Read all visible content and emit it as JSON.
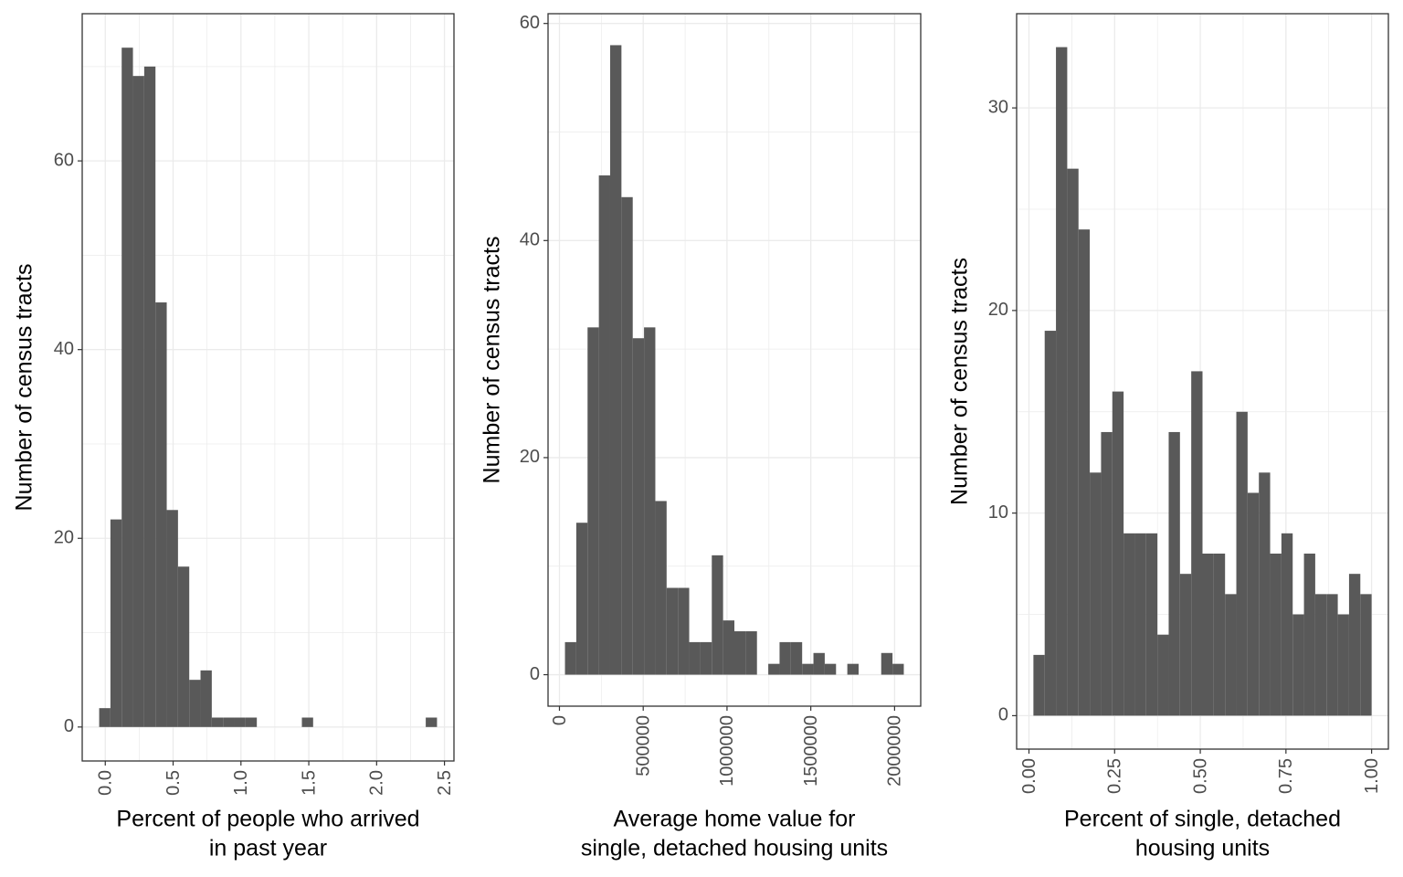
{
  "chart_data": [
    {
      "type": "histogram",
      "color": "#595959",
      "grid": true,
      "xlabel": [
        "Percent of people who arrived",
        "in past year"
      ],
      "ylabel": "Number of census tracts",
      "bins": [
        -0.045,
        0.038,
        0.121,
        0.204,
        0.287,
        0.37,
        0.453,
        0.536,
        0.619,
        0.702,
        0.785,
        0.868,
        0.951,
        1.034,
        1.117,
        1.2,
        1.283,
        1.366,
        1.449,
        1.532,
        1.615,
        1.698,
        1.781,
        1.864,
        1.947,
        2.03,
        2.113,
        2.196,
        2.279,
        2.362,
        2.445
      ],
      "values": [
        2,
        22,
        72,
        69,
        70,
        45,
        23,
        17,
        5,
        6,
        1,
        1,
        1,
        1,
        0,
        0,
        0,
        0,
        1,
        0,
        0,
        0,
        0,
        0,
        0,
        0,
        0,
        0,
        0,
        1
      ],
      "xlim": [
        -0.17,
        2.57
      ],
      "ylim": [
        -3.6,
        75.6
      ],
      "xticks": [
        {
          "value": 0,
          "label": "0.0"
        },
        0.5,
        {
          "value": 1,
          "label": "1.0"
        },
        1.5,
        {
          "value": 2,
          "label": "2.0"
        },
        2.5
      ],
      "yticks": [
        0,
        20,
        40,
        60
      ]
    },
    {
      "type": "histogram",
      "color": "#595959",
      "grid": true,
      "xlabel": [
        "Average home value for",
        "single, detached housing units"
      ],
      "ylabel": "Number of census tracts",
      "bins": [
        33000,
        100400,
        167800,
        235200,
        302600,
        370000,
        437400,
        504800,
        572200,
        639600,
        707000,
        774400,
        841800,
        909200,
        976600,
        1044000,
        1111400,
        1178800,
        1246200,
        1313600,
        1381000,
        1448400,
        1515800,
        1583200,
        1650600,
        1718000,
        1785400,
        1852800,
        1920200,
        1987600,
        2055000
      ],
      "values": [
        3,
        14,
        32,
        46,
        58,
        44,
        31,
        32,
        16,
        8,
        8,
        3,
        3,
        11,
        5,
        4,
        4,
        0,
        1,
        3,
        3,
        1,
        2,
        1,
        0,
        1,
        0,
        0,
        2,
        1
      ],
      "xlim": [
        -68000,
        2156000
      ],
      "ylim": [
        -2.9,
        60.9
      ],
      "xticks": [
        0,
        500000,
        1000000,
        1500000,
        2000000
      ],
      "yticks": [
        0,
        20,
        40,
        60
      ]
    },
    {
      "type": "histogram",
      "color": "#595959",
      "grid": true,
      "xlabel": [
        "Percent of single, detached",
        "housing units"
      ],
      "ylabel": "Number of census tracts",
      "bins": [
        0.013,
        0.0459,
        0.0788,
        0.1117,
        0.1446,
        0.1775,
        0.2104,
        0.2433,
        0.2762,
        0.3091,
        0.342,
        0.3749,
        0.4078,
        0.4407,
        0.4736,
        0.5065,
        0.5394,
        0.5723,
        0.6052,
        0.6381,
        0.671,
        0.7039,
        0.7368,
        0.7697,
        0.8026,
        0.8355,
        0.8684,
        0.9013,
        0.9342,
        0.9671,
        1.0
      ],
      "values": [
        3,
        19,
        33,
        27,
        24,
        12,
        14,
        16,
        9,
        9,
        9,
        4,
        14,
        7,
        17,
        8,
        8,
        6,
        15,
        11,
        12,
        8,
        9,
        5,
        8,
        6,
        6,
        5,
        7,
        6
      ],
      "xlim": [
        -0.036,
        1.049
      ],
      "ylim": [
        -1.65,
        34.65
      ],
      "xticks": [
        {
          "value": 0,
          "label": "0.00"
        },
        {
          "value": 0.25,
          "label": "0.25"
        },
        {
          "value": 0.5,
          "label": "0.50"
        },
        {
          "value": 0.75,
          "label": "0.75"
        },
        {
          "value": 1,
          "label": "1.00"
        }
      ],
      "yticks": [
        0,
        10,
        20,
        30
      ]
    }
  ]
}
